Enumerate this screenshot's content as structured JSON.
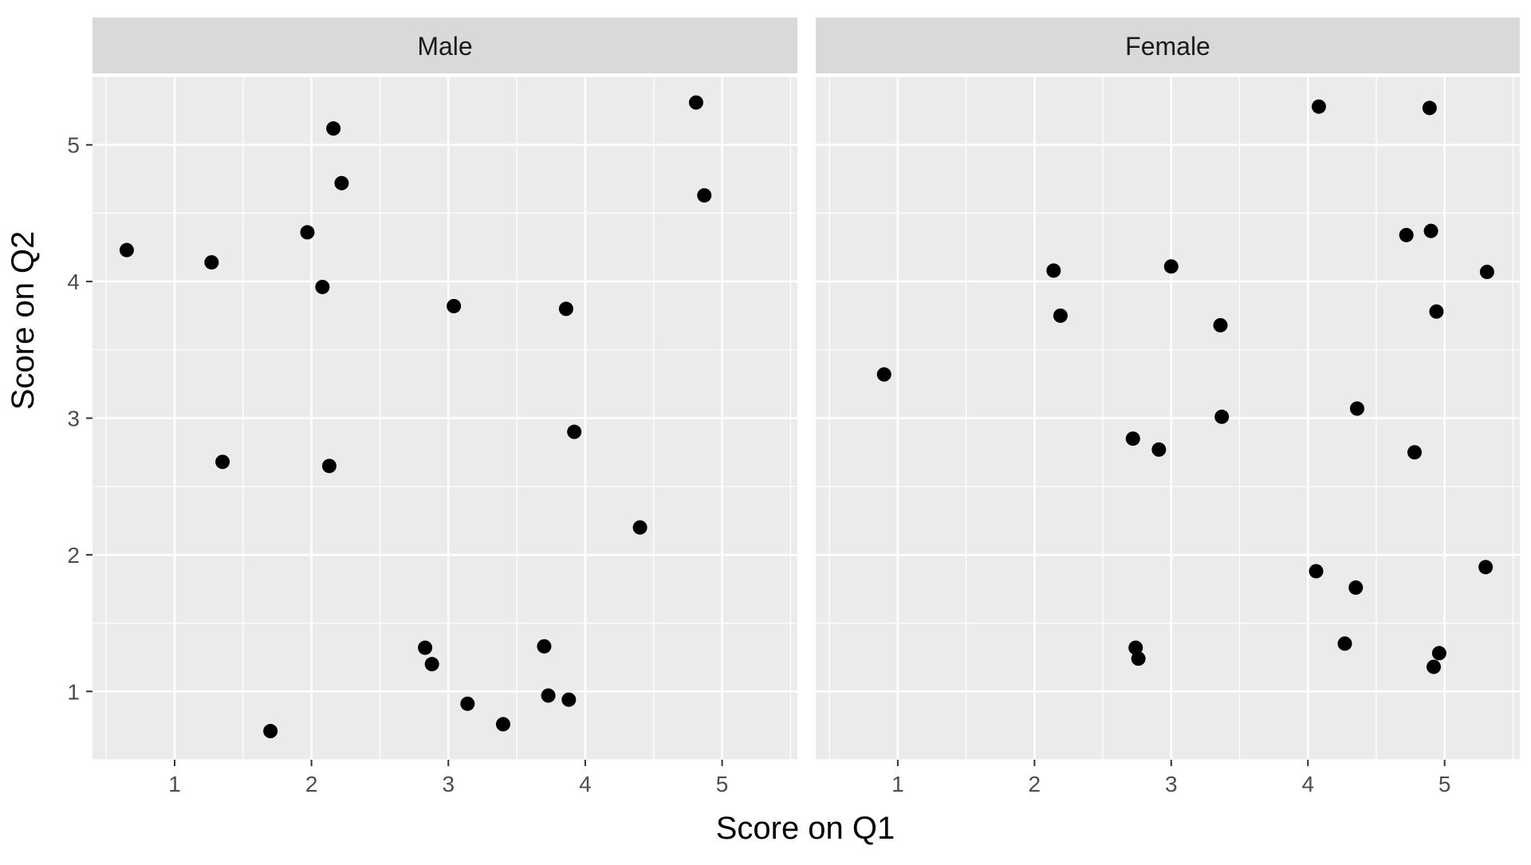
{
  "chart_data": {
    "type": "scatter",
    "title": "",
    "xlabel": "Score on Q1",
    "ylabel": "Score on Q2",
    "xlim": [
      0.4,
      5.55
    ],
    "ylim": [
      0.5,
      5.5
    ],
    "x_ticks": [
      1,
      2,
      3,
      4,
      5
    ],
    "y_ticks": [
      1,
      2,
      3,
      4,
      5
    ],
    "grid": true,
    "legend": "none",
    "point_color": "#000000",
    "panel_background": "#ebebeb",
    "strip_background": "#d9d9d9",
    "panels": [
      {
        "label": "Male",
        "points": [
          {
            "x": 0.65,
            "y": 4.23
          },
          {
            "x": 1.27,
            "y": 4.14
          },
          {
            "x": 1.35,
            "y": 2.68
          },
          {
            "x": 1.7,
            "y": 0.71
          },
          {
            "x": 1.97,
            "y": 4.36
          },
          {
            "x": 2.08,
            "y": 3.96
          },
          {
            "x": 2.13,
            "y": 2.65
          },
          {
            "x": 2.16,
            "y": 5.12
          },
          {
            "x": 2.22,
            "y": 4.72
          },
          {
            "x": 2.83,
            "y": 1.32
          },
          {
            "x": 2.88,
            "y": 1.2
          },
          {
            "x": 3.04,
            "y": 3.82
          },
          {
            "x": 3.14,
            "y": 0.91
          },
          {
            "x": 3.4,
            "y": 0.76
          },
          {
            "x": 3.7,
            "y": 1.33
          },
          {
            "x": 3.73,
            "y": 0.97
          },
          {
            "x": 3.86,
            "y": 3.8
          },
          {
            "x": 3.88,
            "y": 0.94
          },
          {
            "x": 3.92,
            "y": 2.9
          },
          {
            "x": 4.4,
            "y": 2.2
          },
          {
            "x": 4.81,
            "y": 5.31
          },
          {
            "x": 4.87,
            "y": 4.63
          }
        ]
      },
      {
        "label": "Female",
        "points": [
          {
            "x": 0.9,
            "y": 3.32
          },
          {
            "x": 2.14,
            "y": 4.08
          },
          {
            "x": 2.19,
            "y": 3.75
          },
          {
            "x": 2.72,
            "y": 2.85
          },
          {
            "x": 2.74,
            "y": 1.32
          },
          {
            "x": 2.76,
            "y": 1.24
          },
          {
            "x": 2.91,
            "y": 2.77
          },
          {
            "x": 3.0,
            "y": 4.11
          },
          {
            "x": 3.36,
            "y": 3.68
          },
          {
            "x": 3.37,
            "y": 3.01
          },
          {
            "x": 4.06,
            "y": 1.88
          },
          {
            "x": 4.08,
            "y": 5.28
          },
          {
            "x": 4.27,
            "y": 1.35
          },
          {
            "x": 4.35,
            "y": 1.76
          },
          {
            "x": 4.36,
            "y": 3.07
          },
          {
            "x": 4.72,
            "y": 4.34
          },
          {
            "x": 4.78,
            "y": 2.75
          },
          {
            "x": 4.89,
            "y": 5.27
          },
          {
            "x": 4.9,
            "y": 4.37
          },
          {
            "x": 4.92,
            "y": 1.18
          },
          {
            "x": 4.94,
            "y": 3.78
          },
          {
            "x": 4.96,
            "y": 1.28
          },
          {
            "x": 5.3,
            "y": 1.91
          },
          {
            "x": 5.31,
            "y": 4.07
          }
        ]
      }
    ]
  }
}
